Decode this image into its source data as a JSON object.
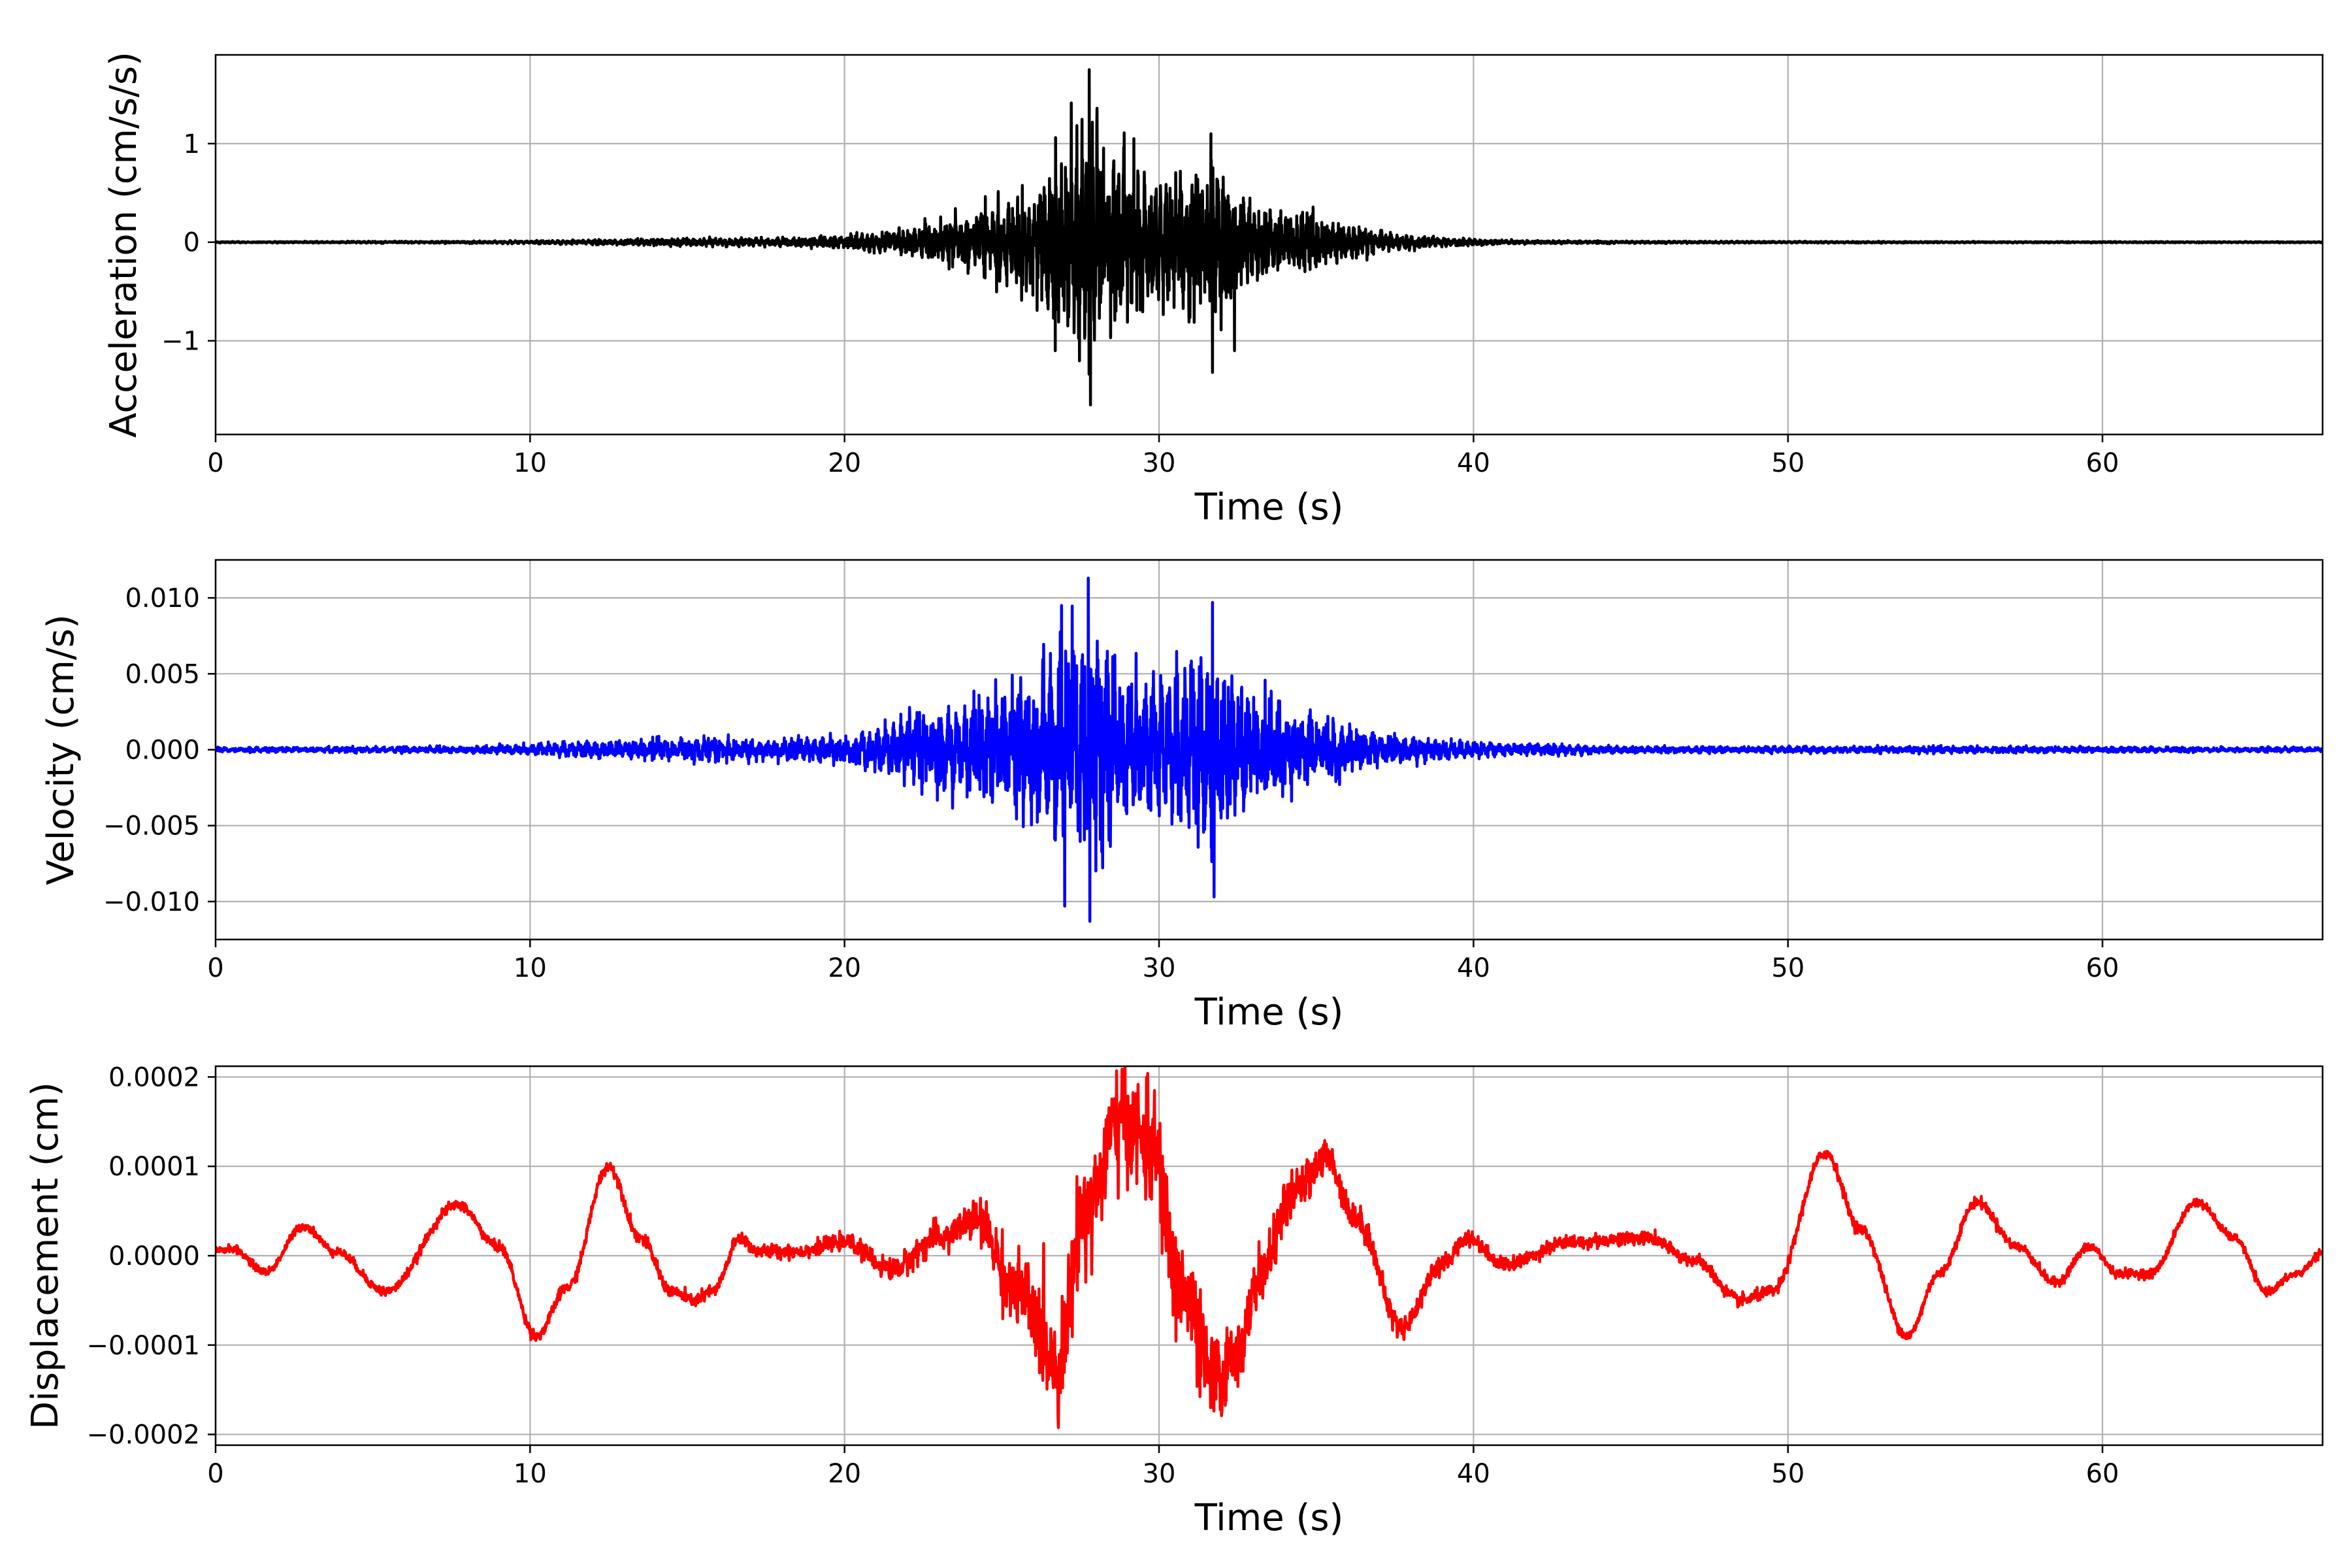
{
  "chart_data": [
    {
      "type": "line",
      "xlabel": "Time (s)",
      "ylabel": "Acceleration (cm/s/s)",
      "xlim": [
        0,
        67
      ],
      "ylim": [
        -1.95,
        1.9
      ],
      "xticks": [
        0,
        10,
        20,
        30,
        40,
        50,
        60
      ],
      "xtick_labels": [
        "0",
        "10",
        "20",
        "30",
        "40",
        "50",
        "60"
      ],
      "yticks": [
        -1,
        0,
        1
      ],
      "ytick_labels": [
        "−1",
        "0",
        "1"
      ],
      "grid": true,
      "series": [
        {
          "color": "#000000",
          "kind": "oscillatory",
          "base_freq": 6,
          "envelope": [
            [
              0,
              0.008
            ],
            [
              8,
              0.015
            ],
            [
              10,
              0.02
            ],
            [
              14,
              0.05
            ],
            [
              18,
              0.06
            ],
            [
              20,
              0.09
            ],
            [
              22,
              0.2
            ],
            [
              24,
              0.4
            ],
            [
              26,
              0.8
            ],
            [
              27.8,
              1.75
            ],
            [
              29,
              1.1
            ],
            [
              30,
              0.8
            ],
            [
              31.5,
              1.1
            ],
            [
              33,
              0.6
            ],
            [
              35,
              0.35
            ],
            [
              37,
              0.15
            ],
            [
              39,
              0.06
            ],
            [
              42,
              0.02
            ],
            [
              47,
              0.015
            ],
            [
              55,
              0.01
            ],
            [
              67,
              0.008
            ]
          ],
          "peaks": [
            [
              27.78,
              1.75
            ],
            [
              27.82,
              -1.65
            ],
            [
              31.65,
              1.1
            ],
            [
              31.7,
              -1.32
            ],
            [
              26.7,
              -1.1
            ],
            [
              29.2,
              1.05
            ],
            [
              32.4,
              -1.1
            ]
          ]
        }
      ]
    },
    {
      "type": "line",
      "xlabel": "Time (s)",
      "ylabel": "Velocity (cm/s)",
      "xlim": [
        0,
        67
      ],
      "ylim": [
        -0.0125,
        0.0125
      ],
      "xticks": [
        0,
        10,
        20,
        30,
        40,
        50,
        60
      ],
      "xtick_labels": [
        "0",
        "10",
        "20",
        "30",
        "40",
        "50",
        "60"
      ],
      "yticks": [
        -0.01,
        -0.005,
        0,
        0.005,
        0.01
      ],
      "ytick_labels": [
        "−0.010",
        "−0.005",
        "0.000",
        "0.005",
        "0.010"
      ],
      "grid": true,
      "series": [
        {
          "color": "#0000ff",
          "kind": "oscillatory",
          "base_freq": 4,
          "envelope": [
            [
              0,
              0.0002
            ],
            [
              8,
              0.0003
            ],
            [
              10,
              0.0005
            ],
            [
              14,
              0.001
            ],
            [
              18,
              0.001
            ],
            [
              20,
              0.0012
            ],
            [
              22,
              0.003
            ],
            [
              24,
              0.0045
            ],
            [
              26,
              0.007
            ],
            [
              27.8,
              0.0113
            ],
            [
              29,
              0.008
            ],
            [
              30,
              0.006
            ],
            [
              31.7,
              0.0097
            ],
            [
              33,
              0.005
            ],
            [
              35,
              0.003
            ],
            [
              37,
              0.0015
            ],
            [
              40,
              0.0007
            ],
            [
              45,
              0.0003
            ],
            [
              50,
              0.0003
            ],
            [
              55,
              0.0003
            ],
            [
              67,
              0.0002
            ]
          ],
          "peaks": [
            [
              27.75,
              0.0113
            ],
            [
              27.8,
              -0.0113
            ],
            [
              27.0,
              -0.0103
            ],
            [
              31.7,
              0.0097
            ],
            [
              31.75,
              -0.0097
            ],
            [
              26.9,
              0.0095
            ]
          ]
        }
      ]
    },
    {
      "type": "line",
      "xlabel": "Time (s)",
      "ylabel": "Displacement (cm)",
      "xlim": [
        0,
        67
      ],
      "ylim": [
        -0.000212,
        0.000212
      ],
      "xticks": [
        0,
        10,
        20,
        30,
        40,
        50,
        60
      ],
      "xtick_labels": [
        "0",
        "10",
        "20",
        "30",
        "40",
        "50",
        "60"
      ],
      "yticks": [
        -0.0002,
        -0.0001,
        0,
        0.0001,
        0.0002
      ],
      "ytick_labels": [
        "−0.0002",
        "−0.0001",
        "0.0000",
        "0.0001",
        "0.0002"
      ],
      "grid": true,
      "series": [
        {
          "color": "#ff0000",
          "kind": "smooth",
          "points": [
            [
              0,
              5e-06
            ],
            [
              0.5,
              8e-06
            ],
            [
              1.6,
              -1.8e-05
            ],
            [
              2.8,
              3.3e-05
            ],
            [
              3.8,
              5e-06
            ],
            [
              5.4,
              -4e-05
            ],
            [
              7.7,
              5.7e-05
            ],
            [
              9.0,
              1e-05
            ],
            [
              10.2,
              -9e-05
            ],
            [
              11.2,
              -3.5e-05
            ],
            [
              12.5,
              0.0001
            ],
            [
              13.5,
              2e-05
            ],
            [
              14.5,
              -4e-05
            ],
            [
              15.2,
              -5e-05
            ],
            [
              15.8,
              -4e-05
            ],
            [
              16.7,
              2e-05
            ],
            [
              17.2,
              5e-06
            ],
            [
              18.5,
              5e-06
            ],
            [
              20,
              1.5e-05
            ],
            [
              21.5,
              -1.5e-05
            ],
            [
              23,
              2e-05
            ],
            [
              24.2,
              4e-05
            ],
            [
              25.5,
              -4e-05
            ],
            [
              26.8,
              -0.00012
            ],
            [
              27.6,
              5e-05
            ],
            [
              28.8,
              0.00015
            ],
            [
              29.8,
              0.00012
            ],
            [
              30.6,
              -3e-05
            ],
            [
              31.8,
              -0.00014
            ],
            [
              32.6,
              -0.0001
            ],
            [
              33.2,
              -2e-05
            ],
            [
              34.3,
              7e-05
            ],
            [
              35.3,
              0.00011
            ],
            [
              36.3,
              4e-05
            ],
            [
              37.7,
              -8e-05
            ],
            [
              39,
              -1e-05
            ],
            [
              39.8,
              2e-05
            ],
            [
              41,
              -1e-05
            ],
            [
              43,
              1.5e-05
            ],
            [
              45.5,
              2e-05
            ],
            [
              47,
              -5e-06
            ],
            [
              48.5,
              -5e-05
            ],
            [
              49.5,
              -4e-05
            ],
            [
              51.2,
              0.000115
            ],
            [
              52.3,
              3e-05
            ],
            [
              53.8,
              -9e-05
            ],
            [
              54.8,
              -2e-05
            ],
            [
              56,
              6e-05
            ],
            [
              57.3,
              1e-05
            ],
            [
              58.5,
              -3e-05
            ],
            [
              59.6,
              1e-05
            ],
            [
              60.5,
              -2e-05
            ],
            [
              61.5,
              -2e-05
            ],
            [
              63,
              6e-05
            ],
            [
              64.2,
              2e-05
            ],
            [
              65.2,
              -4e-05
            ],
            [
              66.2,
              -2e-05
            ],
            [
              67,
              3e-06
            ]
          ],
          "noise": [
            [
              0,
              2e-06
            ],
            [
              20,
              4e-06
            ],
            [
              24,
              1e-05
            ],
            [
              26,
              2.5e-05
            ],
            [
              28,
              3e-05
            ],
            [
              31,
              3e-05
            ],
            [
              33,
              1.5e-05
            ],
            [
              36,
              8e-06
            ],
            [
              40,
              4e-06
            ],
            [
              67,
              2e-06
            ]
          ]
        }
      ]
    }
  ]
}
